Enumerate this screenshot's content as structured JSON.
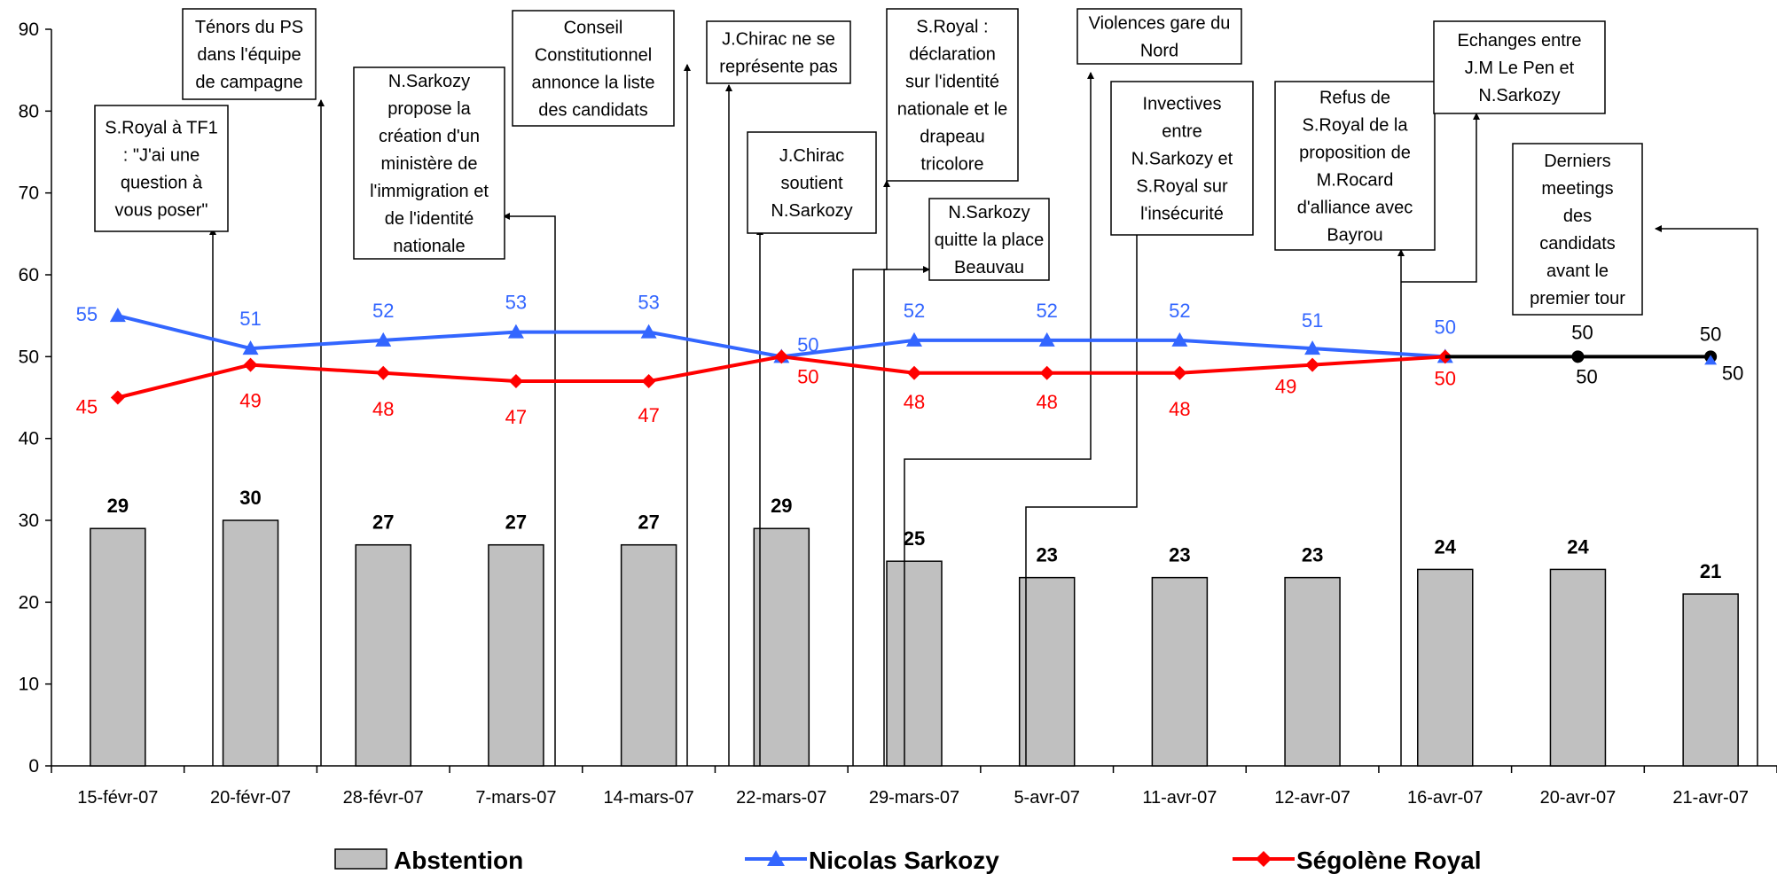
{
  "chart_data": {
    "type": "bar",
    "categories": [
      "15-févr-07",
      "20-févr-07",
      "28-févr-07",
      "7-mars-07",
      "14-mars-07",
      "22-mars-07",
      "29-mars-07",
      "5-avr-07",
      "11-avr-07",
      "12-avr-07",
      "16-avr-07",
      "20-avr-07",
      "21-avr-07"
    ],
    "ylim": [
      0,
      90
    ],
    "yticks": [
      0,
      10,
      20,
      30,
      40,
      50,
      60,
      70,
      80,
      90
    ],
    "grid": false,
    "legend_position": "bottom",
    "series": [
      {
        "name": "Abstention",
        "type": "bar",
        "color": "#c0c0c0",
        "values": [
          29,
          30,
          27,
          27,
          27,
          29,
          25,
          23,
          23,
          23,
          24,
          24,
          21
        ],
        "labels": [
          "29",
          "30",
          "27",
          "27",
          "27",
          "29",
          "25",
          "23",
          "23",
          "23",
          "24",
          "24",
          "21"
        ]
      },
      {
        "name": "Nicolas Sarkozy",
        "type": "line",
        "color": "#3366ff",
        "values": [
          55,
          51,
          52,
          53,
          53,
          50,
          52,
          52,
          52,
          51,
          50,
          50,
          50
        ],
        "labels": [
          "55",
          "51",
          "52",
          "53",
          "53",
          "50",
          "52",
          "52",
          "52",
          "51",
          "50",
          "50",
          "50"
        ]
      },
      {
        "name": "Ségolène Royal",
        "type": "line",
        "color": "#ff0000",
        "values": [
          45,
          49,
          48,
          47,
          47,
          50,
          48,
          48,
          48,
          49,
          50,
          50,
          50
        ],
        "labels": [
          "45",
          "49",
          "48",
          "47",
          "47",
          "50",
          "48",
          "48",
          "48",
          "49",
          "50",
          "50",
          "50"
        ]
      }
    ],
    "annotations": [
      {
        "lines": [
          "S.Royal à TF1",
          ": \"J'ai une",
          "question à",
          "vous poser\""
        ]
      },
      {
        "lines": [
          "Ténors du PS",
          "dans l'équipe",
          "de campagne"
        ]
      },
      {
        "lines": [
          "N.Sarkozy",
          "propose la",
          "création d'un",
          "ministère de",
          "l'immigration et",
          "de l'identité",
          "nationale"
        ]
      },
      {
        "lines": [
          "Conseil",
          "Constitutionnel",
          "annonce la liste",
          "des candidats"
        ]
      },
      {
        "lines": [
          "J.Chirac ne se",
          "représente pas"
        ]
      },
      {
        "lines": [
          "J.Chirac",
          "soutient",
          "N.Sarkozy"
        ]
      },
      {
        "lines": [
          "S.Royal :",
          "déclaration",
          "sur l'identité",
          "nationale et le",
          "drapeau",
          "tricolore"
        ]
      },
      {
        "lines": [
          "N.Sarkozy",
          "quitte la place",
          "Beauvau"
        ]
      },
      {
        "lines": [
          "Violences gare du",
          "Nord"
        ]
      },
      {
        "lines": [
          "Invectives",
          "entre",
          "N.Sarkozy et",
          "S.Royal sur",
          "l'insécurité"
        ]
      },
      {
        "lines": [
          "Refus de",
          "S.Royal de la",
          "proposition de",
          "M.Rocard",
          "d'alliance avec",
          "Bayrou"
        ]
      },
      {
        "lines": [
          "Echanges entre",
          "J.M Le Pen et",
          "N.Sarkozy"
        ]
      },
      {
        "lines": [
          "Derniers",
          "meetings",
          "des",
          "candidats",
          "avant le",
          "premier tour"
        ]
      }
    ]
  }
}
